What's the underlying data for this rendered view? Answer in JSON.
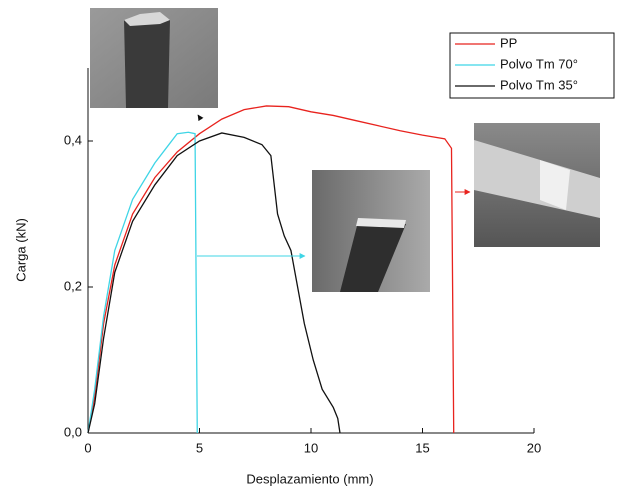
{
  "chart_data": {
    "type": "line",
    "x_label": "Desplazamiento (mm)",
    "y_label": "Carga (kN)",
    "xlim": [
      0,
      20
    ],
    "xticks": [
      0,
      5,
      10,
      15,
      20
    ],
    "ylim": [
      0,
      0.5
    ],
    "yticks": [
      {
        "value": 0,
        "label": "0,0"
      },
      {
        "value": 0.2,
        "label": "0,2"
      },
      {
        "value": 0.4,
        "label": "0,4"
      }
    ],
    "legend": "top-right",
    "series": [
      {
        "name": "PP",
        "color": "#e8231e",
        "x": [
          0,
          0.3,
          0.7,
          1.2,
          2,
          3,
          4,
          5,
          6,
          7,
          8,
          9,
          10,
          11,
          12,
          13,
          14,
          15,
          16,
          16.3,
          16.35,
          16.4
        ],
        "values": [
          0,
          0.05,
          0.15,
          0.23,
          0.3,
          0.35,
          0.385,
          0.41,
          0.43,
          0.443,
          0.448,
          0.447,
          0.44,
          0.435,
          0.428,
          0.421,
          0.414,
          0.408,
          0.403,
          0.39,
          0.2,
          0
        ]
      },
      {
        "name": "Polvo Tm 70°",
        "color": "#3fd5e6",
        "x": [
          0,
          0.3,
          0.7,
          1.2,
          2,
          3,
          3.5,
          4,
          4.5,
          4.8,
          4.85,
          4.9
        ],
        "values": [
          0,
          0.06,
          0.16,
          0.25,
          0.32,
          0.37,
          0.39,
          0.41,
          0.412,
          0.41,
          0.2,
          0
        ]
      },
      {
        "name": "Polvo Tm 35°",
        "color": "#111111",
        "x": [
          0,
          0.3,
          0.7,
          1.2,
          2,
          3,
          4,
          5,
          6,
          7,
          7.8,
          8.2,
          8.5,
          8.8,
          9.1,
          9.7,
          10.1,
          10.5,
          11,
          11.2,
          11.3
        ],
        "values": [
          0,
          0.04,
          0.13,
          0.22,
          0.29,
          0.34,
          0.38,
          0.4,
          0.411,
          0.405,
          0.395,
          0.38,
          0.3,
          0.27,
          0.25,
          0.15,
          0.1,
          0.06,
          0.035,
          0.02,
          0
        ]
      }
    ]
  }
}
